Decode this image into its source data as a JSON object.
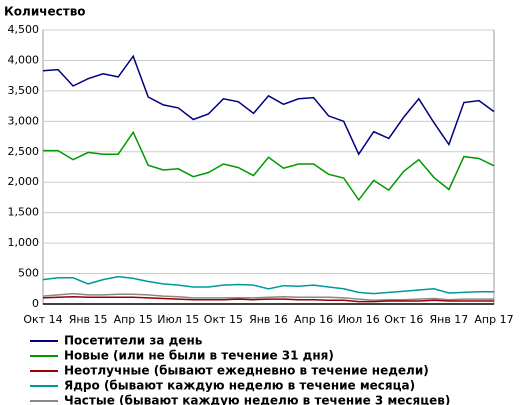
{
  "chart_data": {
    "type": "line",
    "y_label": "Количество",
    "categories": [
      "Окт 14",
      null,
      null,
      "Янв 15",
      null,
      null,
      "Апр 15",
      null,
      null,
      "Июл 15",
      null,
      null,
      "Окт 15",
      null,
      null,
      "Янв 16",
      null,
      null,
      "Апр 16",
      null,
      null,
      "Июл 16",
      null,
      null,
      "Окт 16",
      null,
      null,
      "Янв 17",
      null,
      null,
      "Апр 17"
    ],
    "series": [
      {
        "name": "Посетители за день",
        "color": "#000080",
        "values": [
          3830,
          3850,
          3580,
          3700,
          3780,
          3730,
          4070,
          3400,
          3270,
          3220,
          3030,
          3120,
          3370,
          3320,
          3130,
          3420,
          3280,
          3370,
          3390,
          3090,
          3000,
          2460,
          2830,
          2720,
          3070,
          3370,
          2980,
          2620,
          3310,
          3340,
          3160
        ]
      },
      {
        "name": "Новые (или не были в течение 31 дня)",
        "color": "#009900",
        "values": [
          2520,
          2520,
          2370,
          2490,
          2460,
          2460,
          2820,
          2280,
          2200,
          2220,
          2090,
          2160,
          2300,
          2240,
          2110,
          2410,
          2230,
          2300,
          2300,
          2130,
          2070,
          1710,
          2030,
          1870,
          2180,
          2370,
          2080,
          1880,
          2420,
          2390,
          2270
        ]
      },
      {
        "name": "Неотлучные (бывают ежедневно в течение недели)",
        "color": "#990000",
        "values": [
          100,
          110,
          120,
          110,
          110,
          110,
          110,
          100,
          90,
          80,
          70,
          70,
          70,
          80,
          70,
          80,
          80,
          70,
          70,
          60,
          60,
          40,
          40,
          50,
          50,
          50,
          60,
          50,
          50,
          50,
          50
        ]
      },
      {
        "name": "Ядро (бывают каждую неделю в течение месяца)",
        "color": "#009999",
        "values": [
          400,
          430,
          430,
          330,
          400,
          450,
          420,
          370,
          330,
          310,
          280,
          280,
          310,
          320,
          310,
          250,
          300,
          290,
          310,
          280,
          250,
          190,
          170,
          190,
          210,
          230,
          250,
          180,
          190,
          200,
          200
        ]
      },
      {
        "name": "Частые (бывают каждую неделю в течение 3 месяцев)",
        "color": "#888888",
        "values": [
          130,
          150,
          170,
          150,
          150,
          160,
          160,
          150,
          130,
          120,
          100,
          100,
          100,
          100,
          100,
          110,
          120,
          110,
          110,
          110,
          100,
          80,
          60,
          70,
          70,
          80,
          90,
          70,
          80,
          80,
          80
        ]
      }
    ],
    "ylim": [
      0,
      4500
    ],
    "yticks": [
      0,
      500,
      {
        "value": 1000,
        "label": "1,000"
      },
      {
        "value": 1500,
        "label": "1,500"
      },
      {
        "value": 2000,
        "label": "2,000"
      },
      {
        "value": 2500,
        "label": "2,500"
      },
      {
        "value": 3000,
        "label": "3,000"
      },
      {
        "value": 3500,
        "label": "3,500"
      },
      {
        "value": 4000,
        "label": "4,000"
      },
      {
        "value": 4500,
        "label": "4,500"
      }
    ],
    "grid": true
  }
}
